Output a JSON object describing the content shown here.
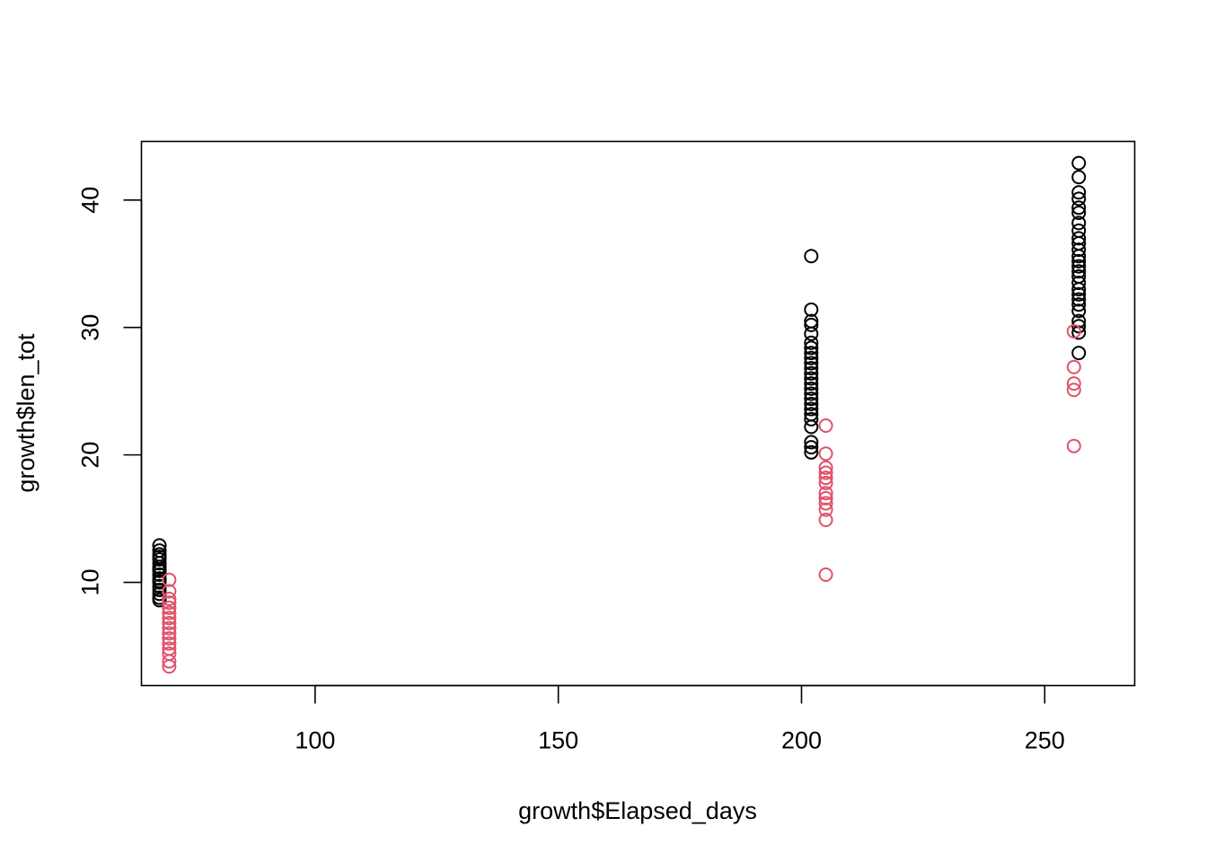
{
  "chart_data": {
    "type": "scatter",
    "title": "",
    "xlabel": "growth$Elapsed_days",
    "ylabel": "growth$len_tot",
    "xlim": [
      64.3,
      268.5
    ],
    "ylim": [
      1.9,
      44.6
    ],
    "xticks": [
      100,
      150,
      200,
      250
    ],
    "yticks": [
      10,
      20,
      30,
      40
    ],
    "grid": false,
    "legend": "none",
    "series": [
      {
        "color": "#000000",
        "points": [
          [
            68,
            12.9
          ],
          [
            68,
            12.5
          ],
          [
            68,
            12.2
          ],
          [
            68,
            11.8
          ],
          [
            68,
            11.5
          ],
          [
            68,
            11.2
          ],
          [
            68,
            10.9
          ],
          [
            68,
            10.6
          ],
          [
            68,
            10.3
          ],
          [
            68,
            10.0
          ],
          [
            68,
            9.7
          ],
          [
            68,
            9.4
          ],
          [
            68,
            9.1
          ],
          [
            68,
            8.8
          ],
          [
            68,
            8.6
          ],
          [
            68,
            12.0
          ],
          [
            68,
            11.0
          ],
          [
            68,
            10.1
          ],
          [
            202,
            35.6
          ],
          [
            202,
            31.4
          ],
          [
            202,
            30.5
          ],
          [
            202,
            30.2
          ],
          [
            202,
            29.5
          ],
          [
            202,
            28.8
          ],
          [
            202,
            28.4
          ],
          [
            202,
            28.0
          ],
          [
            202,
            27.6
          ],
          [
            202,
            27.2
          ],
          [
            202,
            26.8
          ],
          [
            202,
            26.4
          ],
          [
            202,
            26.0
          ],
          [
            202,
            25.6
          ],
          [
            202,
            25.2
          ],
          [
            202,
            24.8
          ],
          [
            202,
            24.4
          ],
          [
            202,
            24.0
          ],
          [
            202,
            23.6
          ],
          [
            202,
            23.2
          ],
          [
            202,
            22.8
          ],
          [
            202,
            22.2
          ],
          [
            202,
            21.0
          ],
          [
            202,
            20.6
          ],
          [
            202,
            20.2
          ],
          [
            257,
            42.9
          ],
          [
            257,
            41.8
          ],
          [
            257,
            40.6
          ],
          [
            257,
            40.1
          ],
          [
            257,
            39.4
          ],
          [
            257,
            39.0
          ],
          [
            257,
            38.2
          ],
          [
            257,
            37.6
          ],
          [
            257,
            37.0
          ],
          [
            257,
            36.6
          ],
          [
            257,
            36.1
          ],
          [
            257,
            35.6
          ],
          [
            257,
            35.2
          ],
          [
            257,
            34.8
          ],
          [
            257,
            34.4
          ],
          [
            257,
            34.0
          ],
          [
            257,
            33.5
          ],
          [
            257,
            33.0
          ],
          [
            257,
            32.6
          ],
          [
            257,
            32.2
          ],
          [
            257,
            31.8
          ],
          [
            257,
            31.3
          ],
          [
            257,
            30.5
          ],
          [
            257,
            30.1
          ],
          [
            257,
            29.6
          ],
          [
            257,
            28.0
          ]
        ]
      },
      {
        "color": "#DF536B",
        "points": [
          [
            70,
            10.2
          ],
          [
            70,
            9.3
          ],
          [
            70,
            8.7
          ],
          [
            70,
            8.4
          ],
          [
            70,
            8.0
          ],
          [
            70,
            7.6
          ],
          [
            70,
            7.2
          ],
          [
            70,
            6.8
          ],
          [
            70,
            6.4
          ],
          [
            70,
            6.0
          ],
          [
            70,
            5.6
          ],
          [
            70,
            5.2
          ],
          [
            70,
            4.8
          ],
          [
            70,
            4.4
          ],
          [
            70,
            3.8
          ],
          [
            70,
            3.4
          ],
          [
            205,
            22.3
          ],
          [
            205,
            20.1
          ],
          [
            205,
            19.0
          ],
          [
            205,
            18.6
          ],
          [
            205,
            18.2
          ],
          [
            205,
            17.8
          ],
          [
            205,
            17.0
          ],
          [
            205,
            16.6
          ],
          [
            205,
            16.2
          ],
          [
            205,
            15.7
          ],
          [
            205,
            14.9
          ],
          [
            205,
            10.6
          ],
          [
            256,
            29.7
          ],
          [
            256,
            26.9
          ],
          [
            256,
            25.6
          ],
          [
            256,
            25.1
          ],
          [
            256,
            20.7
          ]
        ]
      }
    ]
  }
}
